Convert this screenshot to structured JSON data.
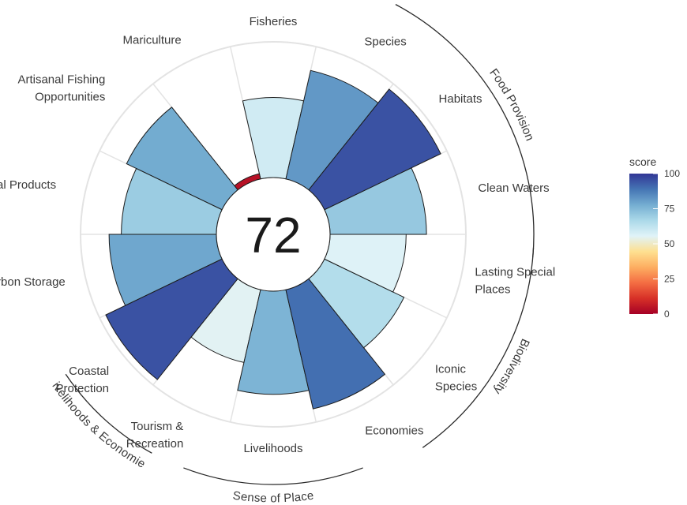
{
  "chart_data": {
    "type": "flower",
    "center_score": "72",
    "value_range": [
      0,
      100
    ],
    "goals": [
      {
        "label_lines": [
          "Fisheries"
        ],
        "value": 59
      },
      {
        "label_lines": [
          "Mariculture"
        ],
        "value": 4
      },
      {
        "label_lines": [
          "Artisanal Fishing",
          "Opportunities"
        ],
        "value": 78
      },
      {
        "label_lines": [
          "Natural Products"
        ],
        "value": 70
      },
      {
        "label_lines": [
          "Carbon Storage"
        ],
        "value": 79
      },
      {
        "label_lines": [
          "Coastal",
          "Protection"
        ],
        "value": 95
      },
      {
        "label_lines": [
          "Tourism &",
          "Recreation"
        ],
        "value": 55
      },
      {
        "label_lines": [
          "Livelihoods"
        ],
        "value": 76
      },
      {
        "label_lines": [
          "Economies"
        ],
        "value": 90
      },
      {
        "label_lines": [
          "Iconic",
          "Species"
        ],
        "value": 65
      },
      {
        "label_lines": [
          "Lasting Special",
          "Places"
        ],
        "value": 56
      },
      {
        "label_lines": [
          "Clean Waters"
        ],
        "value": 71
      },
      {
        "label_lines": [
          "Habitats"
        ],
        "value": 95
      },
      {
        "label_lines": [
          "Species"
        ],
        "value": 82
      }
    ],
    "groups": [
      {
        "label": "Food Provision"
      },
      {
        "label": "Biodiversity"
      },
      {
        "label": "Sense of Place"
      },
      {
        "label": "Livelihoods & Economies"
      }
    ],
    "legend": {
      "title": "score",
      "ticks": [
        "100",
        "75",
        "50",
        "25",
        "0"
      ],
      "tick_values": [
        100,
        75,
        50,
        25,
        0
      ],
      "colors": [
        "#a50026",
        "#d73027",
        "#f46d43",
        "#fdae61",
        "#fee090",
        "#e0f3f8",
        "#abd9e9",
        "#74add1",
        "#4575b4",
        "#313695"
      ]
    }
  }
}
